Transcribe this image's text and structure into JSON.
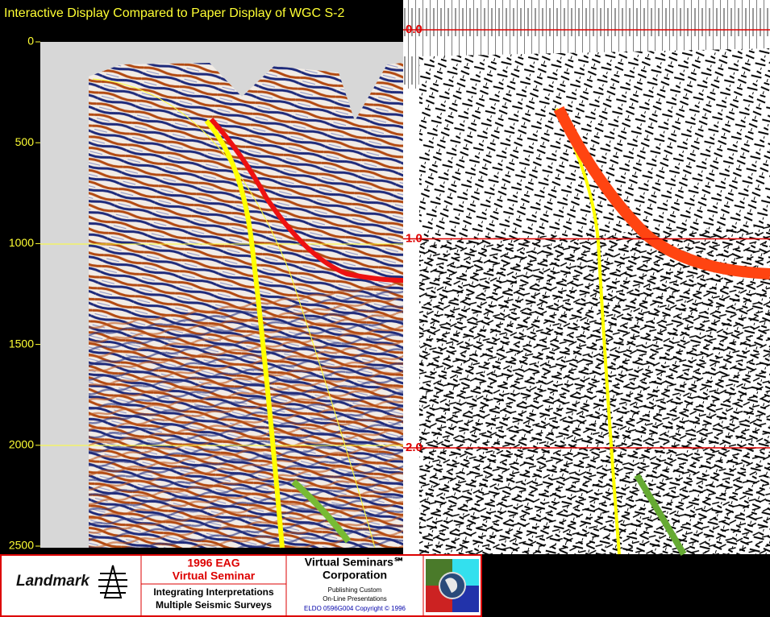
{
  "title": "Interactive Display Compared to Paper Display of WGC S-2",
  "left_panel": {
    "axis_labels": [
      "0",
      "500",
      "1000",
      "1500",
      "2000",
      "2500"
    ]
  },
  "right_panel": {
    "axis_labels": [
      "0.0",
      "1.0",
      "2.0"
    ]
  },
  "footer": {
    "company": "Landmark",
    "event": [
      "1996 EAG",
      "Virtual Seminar"
    ],
    "topic": [
      "Integrating Interpretations",
      "Multiple Seismic Surveys"
    ],
    "sponsor": [
      "Virtual Seminars℠",
      "Corporation"
    ],
    "tagline": [
      "Publishing Custom",
      "On-Line Presentations"
    ],
    "copyright": "ELDO 0596G004 Copyright © 1996"
  }
}
